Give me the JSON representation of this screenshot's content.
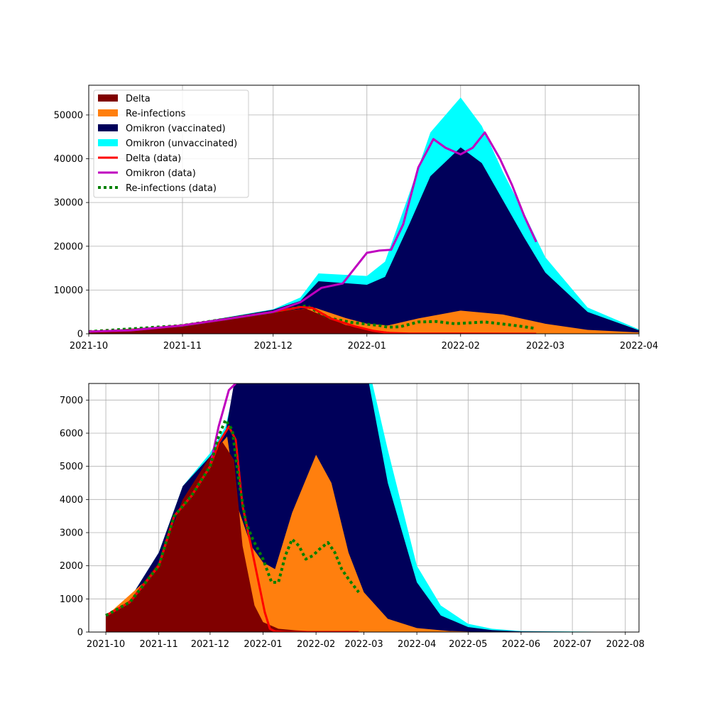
{
  "colors": {
    "delta": "#800000",
    "reinfections": "#ff7f0e",
    "omikron_vaccinated": "#00005a",
    "omikron_unvaccinated": "#00ffff",
    "delta_data": "#ff0000",
    "omikron_data": "#bf00bf",
    "reinfections_data": "#008000",
    "grid": "#b0b0b0"
  },
  "legend": {
    "delta": "Delta",
    "reinfections": "Re-infections",
    "omikron_vaccinated": "Omikron (vaccinated)",
    "omikron_unvaccinated": "Omikron (unvaccinated)",
    "delta_data": "Delta (data)",
    "omikron_data": "Omikron (data)",
    "reinfections_data": "Re-infections (data)"
  },
  "chart_data": [
    {
      "type": "area",
      "x_type": "date",
      "xlim": [
        "2021-10-01",
        "2022-04-01"
      ],
      "ylim": [
        0,
        56800
      ],
      "xticks": [
        "2021-10-01",
        "2021-11-01",
        "2021-12-01",
        "2022-01-01",
        "2022-02-01",
        "2022-03-01",
        "2022-04-01"
      ],
      "xtick_labels": [
        "2021-10",
        "2021-11",
        "2021-12",
        "2022-01",
        "2022-02",
        "2022-03",
        "2022-04"
      ],
      "yticks": [
        0,
        10000,
        20000,
        30000,
        40000,
        50000
      ],
      "ytick_labels": [
        "0",
        "10000",
        "20000",
        "30000",
        "40000",
        "50000"
      ],
      "grid": true,
      "legend_position": "top-left",
      "series": [
        {
          "name": "Delta",
          "kind": "area",
          "x": [
            "2021-10-01",
            "2021-10-15",
            "2021-11-01",
            "2021-11-15",
            "2021-11-25",
            "2021-12-05",
            "2021-12-12",
            "2021-12-18",
            "2021-12-25",
            "2022-01-01",
            "2022-01-10",
            "2022-01-20",
            "2022-02-01",
            "2022-04-01"
          ],
          "y": [
            500,
            900,
            1900,
            3300,
            4300,
            5300,
            5700,
            4000,
            2000,
            1000,
            300,
            100,
            50,
            0
          ]
        },
        {
          "name": "Re-infections",
          "kind": "area",
          "x": [
            "2021-10-01",
            "2021-11-01",
            "2021-12-05",
            "2021-12-15",
            "2021-12-25",
            "2022-01-01",
            "2022-01-08",
            "2022-01-18",
            "2022-02-01",
            "2022-02-15",
            "2022-03-01",
            "2022-03-15",
            "2022-04-01"
          ],
          "y": [
            500,
            1900,
            5300,
            5900,
            3600,
            2300,
            1900,
            3500,
            5300,
            4400,
            2300,
            900,
            300
          ]
        },
        {
          "name": "Omikron (vaccinated)",
          "kind": "area",
          "x": [
            "2021-10-01",
            "2021-11-01",
            "2021-12-01",
            "2021-12-10",
            "2021-12-16",
            "2022-01-01",
            "2022-01-07",
            "2022-01-15",
            "2022-01-22",
            "2022-02-01",
            "2022-02-08",
            "2022-02-15",
            "2022-02-22",
            "2022-03-01",
            "2022-03-15",
            "2022-04-01"
          ],
          "y": [
            500,
            2000,
            5500,
            7500,
            12000,
            11200,
            13000,
            25000,
            36000,
            42600,
            39000,
            30500,
            22000,
            14000,
            5000,
            800
          ]
        },
        {
          "name": "Omikron (unvaccinated)",
          "kind": "area",
          "x": [
            "2021-10-01",
            "2021-11-01",
            "2021-12-01",
            "2021-12-10",
            "2021-12-16",
            "2022-01-01",
            "2022-01-07",
            "2022-01-15",
            "2022-01-22",
            "2022-02-01",
            "2022-02-08",
            "2022-02-15",
            "2022-02-22",
            "2022-03-01",
            "2022-03-15",
            "2022-04-01"
          ],
          "y": [
            500,
            2000,
            5600,
            8300,
            13800,
            13200,
            16500,
            32000,
            46000,
            54000,
            47500,
            37000,
            27500,
            17500,
            6000,
            1000
          ]
        },
        {
          "name": "Delta (data)",
          "kind": "line",
          "x": [
            "2021-10-01",
            "2021-10-15",
            "2021-11-01",
            "2021-11-15",
            "2021-12-01",
            "2021-12-10",
            "2021-12-14",
            "2021-12-20",
            "2021-12-28",
            "2022-01-03",
            "2022-01-08",
            "2022-01-15",
            "2022-02-26"
          ],
          "y": [
            500,
            800,
            1900,
            3300,
            5000,
            6100,
            5900,
            3500,
            1700,
            700,
            200,
            50,
            0
          ]
        },
        {
          "name": "Omikron (data)",
          "kind": "line",
          "x": [
            "2021-10-01",
            "2021-10-15",
            "2021-11-01",
            "2021-11-15",
            "2021-12-01",
            "2021-12-10",
            "2021-12-17",
            "2021-12-24",
            "2021-12-28",
            "2022-01-01",
            "2022-01-05",
            "2022-01-09",
            "2022-01-13",
            "2022-01-18",
            "2022-01-23",
            "2022-01-27",
            "2022-02-01",
            "2022-02-05",
            "2022-02-09",
            "2022-02-14",
            "2022-02-18",
            "2022-02-22",
            "2022-02-26"
          ],
          "y": [
            500,
            800,
            1900,
            3300,
            5000,
            7200,
            10500,
            11500,
            15000,
            18500,
            19000,
            19200,
            25000,
            38000,
            44500,
            42500,
            41000,
            42500,
            46000,
            40000,
            34000,
            27000,
            21000
          ]
        },
        {
          "name": "Re-infections (data)",
          "kind": "line",
          "x": [
            "2021-10-01",
            "2021-11-01",
            "2021-12-01",
            "2021-12-12",
            "2021-12-20",
            "2021-12-27",
            "2022-01-01",
            "2022-01-05",
            "2022-01-08",
            "2022-01-12",
            "2022-01-18",
            "2022-01-24",
            "2022-01-30",
            "2022-02-04",
            "2022-02-09",
            "2022-02-14",
            "2022-02-20",
            "2022-02-26"
          ],
          "y": [
            500,
            1900,
            5000,
            6400,
            3500,
            2600,
            2200,
            1900,
            1500,
            1600,
            2700,
            2800,
            2300,
            2500,
            2700,
            2300,
            1800,
            1200
          ]
        }
      ]
    },
    {
      "type": "area",
      "x_type": "date",
      "xlim": [
        "2021-09-21",
        "2022-08-09"
      ],
      "ylim": [
        0,
        7500
      ],
      "xticks": [
        "2021-10-01",
        "2021-11-01",
        "2021-12-01",
        "2022-01-01",
        "2022-02-01",
        "2022-03-01",
        "2022-04-01",
        "2022-05-01",
        "2022-06-01",
        "2022-07-01",
        "2022-08-01"
      ],
      "xtick_labels": [
        "2021-10",
        "2021-11",
        "2021-12",
        "2022-01",
        "2022-02",
        "2022-03",
        "2022-04",
        "2022-05",
        "2022-06",
        "2022-07",
        "2022-08"
      ],
      "yticks": [
        0,
        1000,
        2000,
        3000,
        4000,
        5000,
        6000,
        7000
      ],
      "ytick_labels": [
        "0",
        "1000",
        "2000",
        "3000",
        "4000",
        "5000",
        "6000",
        "7000"
      ],
      "grid": true,
      "series": [
        {
          "name": "Omikron (unvaccinated)",
          "kind": "area",
          "x": [
            "2021-10-01",
            "2021-10-15",
            "2021-11-01",
            "2021-11-15",
            "2021-12-01",
            "2021-12-10",
            "2021-12-16",
            "2022-03-06",
            "2022-03-15",
            "2022-04-01",
            "2022-04-15",
            "2022-05-01",
            "2022-05-15",
            "2022-06-01",
            "2022-08-09"
          ],
          "y": [
            500,
            1000,
            2400,
            4400,
            5400,
            6200,
            7500,
            7500,
            5500,
            2000,
            800,
            250,
            100,
            30,
            0
          ]
        },
        {
          "name": "Omikron (vaccinated)",
          "kind": "area",
          "x": [
            "2021-10-01",
            "2021-10-15",
            "2021-11-01",
            "2021-11-15",
            "2021-12-01",
            "2021-12-10",
            "2021-12-15",
            "2022-03-04",
            "2022-03-15",
            "2022-04-01",
            "2022-04-15",
            "2022-05-01",
            "2022-05-15",
            "2022-06-01",
            "2022-08-09"
          ],
          "y": [
            500,
            1000,
            2400,
            4400,
            5300,
            6000,
            7500,
            7500,
            4500,
            1500,
            500,
            150,
            60,
            20,
            0
          ]
        },
        {
          "name": "Re-infections",
          "kind": "area",
          "x": [
            "2021-10-01",
            "2021-11-01",
            "2021-12-01",
            "2021-12-11",
            "2021-12-17",
            "2021-12-25",
            "2022-01-01",
            "2022-01-08",
            "2022-01-18",
            "2022-02-01",
            "2022-02-10",
            "2022-02-20",
            "2022-03-01",
            "2022-03-15",
            "2022-04-01",
            "2022-04-20",
            "2022-05-10"
          ],
          "y": [
            480,
            1900,
            5300,
            5900,
            3800,
            2600,
            2100,
            1900,
            3600,
            5350,
            4500,
            2400,
            1200,
            400,
            120,
            30,
            0
          ]
        },
        {
          "name": "Delta",
          "kind": "area",
          "x": [
            "2021-10-01",
            "2021-10-15",
            "2021-11-01",
            "2021-11-15",
            "2021-12-01",
            "2021-12-08",
            "2021-12-15",
            "2021-12-20",
            "2021-12-27",
            "2022-01-01",
            "2022-01-10",
            "2022-01-20",
            "2022-02-01",
            "2022-02-26"
          ],
          "y": [
            500,
            950,
            2100,
            4000,
            5300,
            5750,
            5200,
            2600,
            800,
            300,
            100,
            50,
            20,
            0
          ]
        },
        {
          "name": "Delta (data)",
          "kind": "line",
          "x": [
            "2021-10-01",
            "2021-10-15",
            "2021-11-01",
            "2021-11-10",
            "2021-11-20",
            "2021-12-01",
            "2021-12-06",
            "2021-12-12",
            "2021-12-16",
            "2021-12-20",
            "2021-12-25",
            "2021-12-29",
            "2022-01-02",
            "2022-01-05",
            "2022-01-08",
            "2022-01-15",
            "2022-02-26"
          ],
          "y": [
            500,
            900,
            2000,
            3500,
            4100,
            5000,
            5700,
            6200,
            5800,
            3800,
            2600,
            1600,
            600,
            100,
            20,
            0,
            0
          ]
        },
        {
          "name": "Omikron (data)",
          "kind": "line",
          "x": [
            "2021-10-01",
            "2021-10-15",
            "2021-11-01",
            "2021-11-10",
            "2021-11-20",
            "2021-12-01",
            "2021-12-06",
            "2021-12-12",
            "2021-12-16"
          ],
          "y": [
            500,
            900,
            2000,
            3500,
            4100,
            5000,
            6200,
            7300,
            7500
          ]
        },
        {
          "name": "Re-infections (data)",
          "kind": "line",
          "x": [
            "2021-10-01",
            "2021-10-15",
            "2021-11-01",
            "2021-11-10",
            "2021-11-20",
            "2021-12-01",
            "2021-12-06",
            "2021-12-10",
            "2021-12-14",
            "2021-12-18",
            "2021-12-22",
            "2021-12-26",
            "2022-01-01",
            "2022-01-06",
            "2022-01-10",
            "2022-01-14",
            "2022-01-18",
            "2022-01-22",
            "2022-01-26",
            "2022-01-30",
            "2022-02-03",
            "2022-02-08",
            "2022-02-12",
            "2022-02-16",
            "2022-02-20",
            "2022-02-26"
          ],
          "y": [
            500,
            900,
            2000,
            3500,
            4100,
            5000,
            5900,
            6400,
            6100,
            4500,
            3300,
            2800,
            2200,
            1500,
            1500,
            2300,
            2800,
            2600,
            2200,
            2300,
            2500,
            2700,
            2400,
            1900,
            1600,
            1200
          ]
        }
      ]
    }
  ]
}
